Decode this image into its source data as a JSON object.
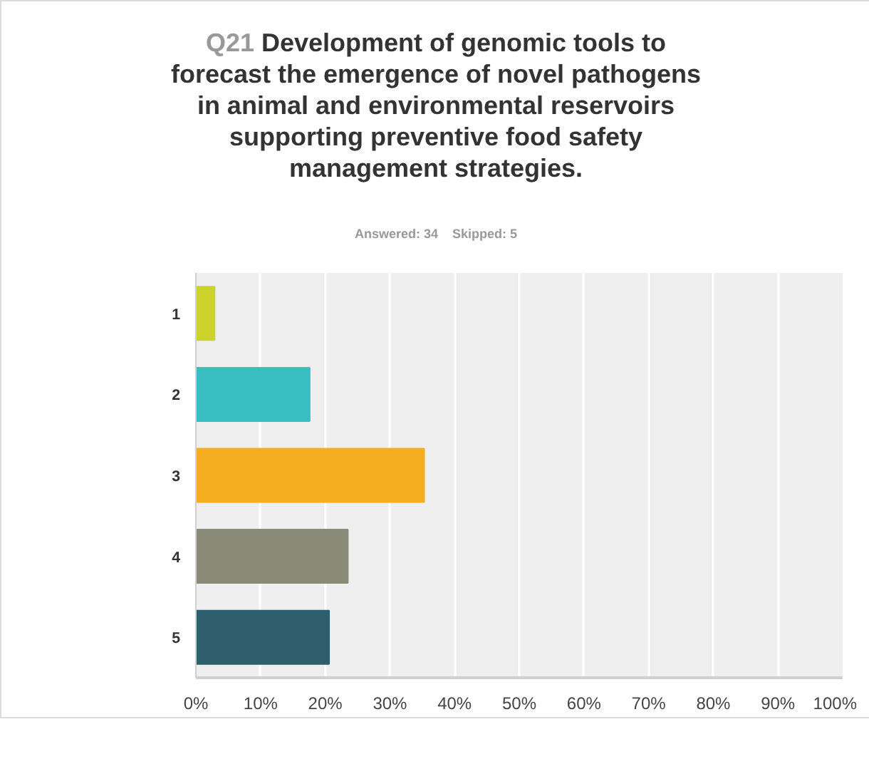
{
  "chart_data": {
    "type": "bar",
    "orientation": "horizontal",
    "title": "Q21 Development of genomic tools to forecast the emergence of novel pathogens in animal and environmental reservoirs supporting preventive food safety management strategies.",
    "subtitle": "Answered: 34    Skipped: 5",
    "categories": [
      "1",
      "2",
      "3",
      "4",
      "5"
    ],
    "values": [
      2.9,
      17.6,
      35.3,
      23.5,
      20.6
    ],
    "colors": [
      "#ccd42c",
      "#38bec1",
      "#f4ae1f",
      "#898a78",
      "#2f5f6c"
    ],
    "xlim": [
      0,
      100
    ],
    "xticks": [
      {
        "value": 0,
        "label": "0%"
      },
      {
        "value": 10,
        "label": "10%"
      },
      {
        "value": 20,
        "label": "20%"
      },
      {
        "value": 30,
        "label": "30%"
      },
      {
        "value": 40,
        "label": "40%"
      },
      {
        "value": 50,
        "label": "50%"
      },
      {
        "value": 60,
        "label": "60%"
      },
      {
        "value": 70,
        "label": "70%"
      },
      {
        "value": 80,
        "label": "80%"
      },
      {
        "value": 90,
        "label": "90%"
      },
      {
        "value": 100,
        "label": "100%"
      }
    ],
    "grid": "x"
  }
}
